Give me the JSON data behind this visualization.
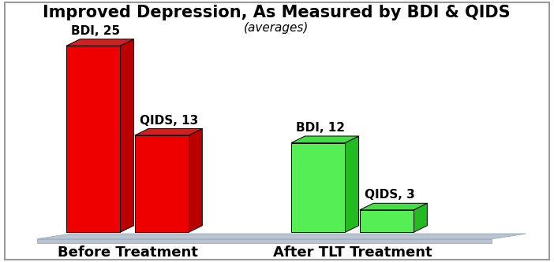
{
  "title": "Improved Depression, As Measured by BDI & QIDS",
  "subtitle": "(averages)",
  "bars": [
    {
      "label": "BDI, 25",
      "value": 25,
      "group": "Before Treatment",
      "face_color": "#EE0000",
      "side_color": "#BB0000",
      "top_color": "#CC2222"
    },
    {
      "label": "QIDS, 13",
      "value": 13,
      "group": "Before Treatment",
      "face_color": "#EE0000",
      "side_color": "#BB0000",
      "top_color": "#CC2222"
    },
    {
      "label": "BDI, 12",
      "value": 12,
      "group": "After TLT Treatment",
      "face_color": "#55EE55",
      "side_color": "#22BB22",
      "top_color": "#44DD44"
    },
    {
      "label": "QIDS, 3",
      "value": 3,
      "group": "After TLT Treatment",
      "face_color": "#55EE55",
      "side_color": "#22BB22",
      "top_color": "#44DD44"
    }
  ],
  "group_labels": [
    "Before Treatment",
    "After TLT Treatment"
  ],
  "background_color": "#FFFFFF",
  "title_fontsize": 15,
  "subtitle_fontsize": 11,
  "label_fontsize": 11,
  "group_label_fontsize": 13,
  "floor_color": "#B8C4D0",
  "floor_edge_color": "#9AAABB"
}
